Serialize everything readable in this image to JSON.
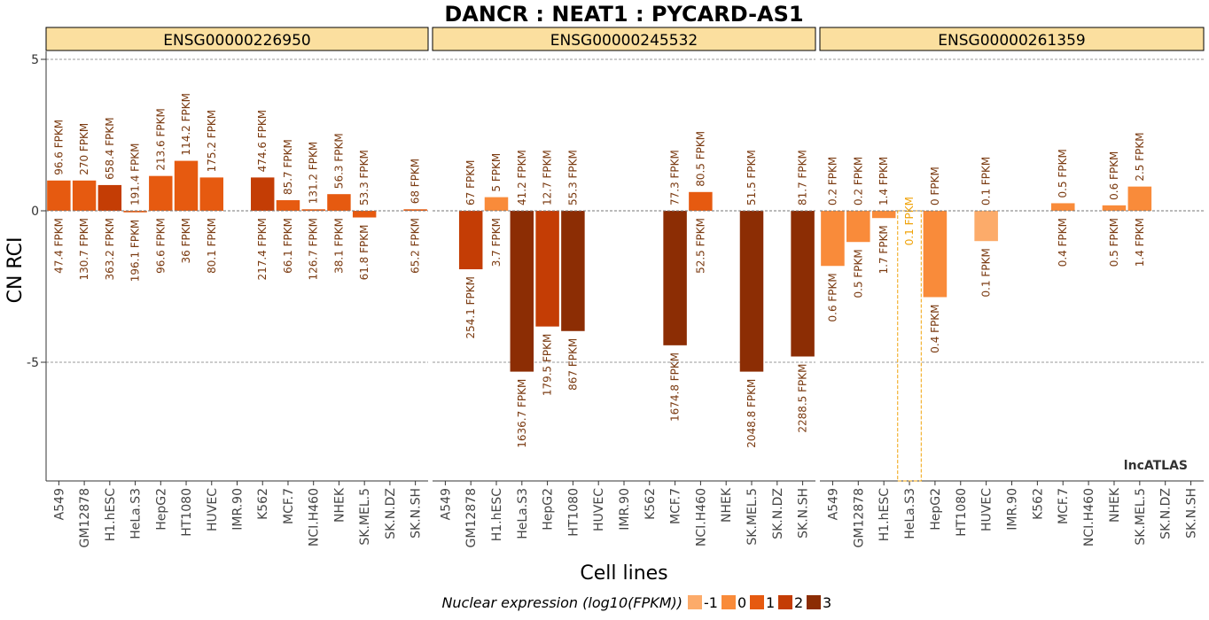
{
  "chart_data": {
    "type": "bar",
    "title": "DANCR : NEAT1 : PYCARD-AS1",
    "xlabel": "Cell lines",
    "ylabel": "CN RCI",
    "ylim": [
      -9,
      5
    ],
    "yticks": [
      5,
      0,
      -5
    ],
    "grid": "horizontal dashed at y ticks",
    "watermark": "lncATLAS",
    "cell_lines": [
      "A549",
      "GM12878",
      "H1.hESC",
      "HeLa.S3",
      "HepG2",
      "HT1080",
      "HUVEC",
      "IMR.90",
      "K562",
      "MCF.7",
      "NCI.H460",
      "NHEK",
      "SK.MEL.5",
      "SK.N.DZ",
      "SK.N.SH"
    ],
    "legend": {
      "title": "Nuclear expression (log10(FPKM))",
      "placement": "bottom",
      "levels": [
        {
          "label": "-1",
          "color": "#fcab6a"
        },
        {
          "label": "0",
          "color": "#f98b3a"
        },
        {
          "label": "1",
          "color": "#e65a10"
        },
        {
          "label": "2",
          "color": "#c43d05"
        },
        {
          "label": "3",
          "color": "#8c2d04"
        }
      ]
    },
    "panels": [
      {
        "gene_id": "ENSG00000226950",
        "bars": [
          {
            "cell": "A549",
            "rci": 1.0,
            "cyto": "96.6 FPKM",
            "nuc": "47.4 FPKM",
            "level": 2
          },
          {
            "cell": "GM12878",
            "rci": 1.0,
            "cyto": "270 FPKM",
            "nuc": "130.7 FPKM",
            "level": 2
          },
          {
            "cell": "H1.hESC",
            "rci": 0.85,
            "cyto": "658.4 FPKM",
            "nuc": "363.2 FPKM",
            "level": 3
          },
          {
            "cell": "HeLa.S3",
            "rci": -0.05,
            "cyto": "191.4 FPKM",
            "nuc": "196.1 FPKM",
            "level": 2
          },
          {
            "cell": "HepG2",
            "rci": 1.15,
            "cyto": "213.6 FPKM",
            "nuc": "96.6 FPKM",
            "level": 2
          },
          {
            "cell": "HT1080",
            "rci": 1.65,
            "cyto": "114.2 FPKM",
            "nuc": "36 FPKM",
            "level": 2
          },
          {
            "cell": "HUVEC",
            "rci": 1.1,
            "cyto": "175.2 FPKM",
            "nuc": "80.1 FPKM",
            "level": 2
          },
          {
            "cell": "IMR.90",
            "rci": null,
            "cyto": "",
            "nuc": "",
            "level": null
          },
          {
            "cell": "K562",
            "rci": 1.1,
            "cyto": "474.6 FPKM",
            "nuc": "217.4 FPKM",
            "level": 3
          },
          {
            "cell": "MCF.7",
            "rci": 0.35,
            "cyto": "85.7 FPKM",
            "nuc": "66.1 FPKM",
            "level": 2
          },
          {
            "cell": "NCI.H460",
            "rci": 0.05,
            "cyto": "131.2 FPKM",
            "nuc": "126.7 FPKM",
            "level": 2
          },
          {
            "cell": "NHEK",
            "rci": 0.55,
            "cyto": "56.3 FPKM",
            "nuc": "38.1 FPKM",
            "level": 2
          },
          {
            "cell": "SK.MEL.5",
            "rci": -0.22,
            "cyto": "53.3 FPKM",
            "nuc": "61.8 FPKM",
            "level": 2
          },
          {
            "cell": "SK.N.DZ",
            "rci": null,
            "cyto": "",
            "nuc": "",
            "level": null
          },
          {
            "cell": "SK.N.SH",
            "rci": 0.05,
            "cyto": "68 FPKM",
            "nuc": "65.2 FPKM",
            "level": 2
          }
        ]
      },
      {
        "gene_id": "ENSG00000245532",
        "bars": [
          {
            "cell": "A549",
            "rci": null,
            "cyto": "",
            "nuc": "",
            "level": null
          },
          {
            "cell": "GM12878",
            "rci": -1.93,
            "cyto": "67 FPKM",
            "nuc": "254.1 FPKM",
            "level": 3
          },
          {
            "cell": "H1.hESC",
            "rci": 0.45,
            "cyto": "5 FPKM",
            "nuc": "3.7 FPKM",
            "level": 1
          },
          {
            "cell": "HeLa.S3",
            "rci": -5.31,
            "cyto": "41.2 FPKM",
            "nuc": "1636.7 FPKM",
            "level": 4
          },
          {
            "cell": "HepG2",
            "rci": -3.82,
            "cyto": "12.7 FPKM",
            "nuc": "179.5 FPKM",
            "level": 3
          },
          {
            "cell": "HT1080",
            "rci": -3.97,
            "cyto": "55.3 FPKM",
            "nuc": "867 FPKM",
            "level": 4
          },
          {
            "cell": "HUVEC",
            "rci": null,
            "cyto": "",
            "nuc": "",
            "level": null
          },
          {
            "cell": "IMR.90",
            "rci": null,
            "cyto": "",
            "nuc": "",
            "level": null
          },
          {
            "cell": "K562",
            "rci": null,
            "cyto": "",
            "nuc": "",
            "level": null
          },
          {
            "cell": "MCF.7",
            "rci": -4.44,
            "cyto": "77.3 FPKM",
            "nuc": "1674.8 FPKM",
            "level": 4
          },
          {
            "cell": "NCI.H460",
            "rci": 0.62,
            "cyto": "80.5 FPKM",
            "nuc": "52.5 FPKM",
            "level": 2
          },
          {
            "cell": "NHEK",
            "rci": null,
            "cyto": "",
            "nuc": "",
            "level": null
          },
          {
            "cell": "SK.MEL.5",
            "rci": -5.31,
            "cyto": "51.5 FPKM",
            "nuc": "2048.8 FPKM",
            "level": 4
          },
          {
            "cell": "SK.N.DZ",
            "rci": null,
            "cyto": "",
            "nuc": "",
            "level": null
          },
          {
            "cell": "SK.N.SH",
            "rci": -4.81,
            "cyto": "81.7 FPKM",
            "nuc": "2288.5 FPKM",
            "level": 4
          }
        ]
      },
      {
        "gene_id": "ENSG00000261359",
        "bars": [
          {
            "cell": "A549",
            "rci": -1.82,
            "cyto": "0.2 FPKM",
            "nuc": "0.6 FPKM",
            "level": 1
          },
          {
            "cell": "GM12878",
            "rci": -1.03,
            "cyto": "0.2 FPKM",
            "nuc": "0.5 FPKM",
            "level": 1
          },
          {
            "cell": "H1.hESC",
            "rci": -0.24,
            "cyto": "1.4 FPKM",
            "nuc": "1.7 FPKM",
            "level": 1
          },
          {
            "cell": "HeLa.S3",
            "rci": -9.0,
            "cyto": "",
            "nuc": "0.1 FPKM",
            "level": 0,
            "outline": true
          },
          {
            "cell": "HepG2",
            "rci": -2.85,
            "cyto": "0 FPKM",
            "nuc": "0.4 FPKM",
            "level": 1
          },
          {
            "cell": "HT1080",
            "rci": null,
            "cyto": "",
            "nuc": "",
            "level": null
          },
          {
            "cell": "HUVEC",
            "rci": -1.0,
            "cyto": "0.1 FPKM",
            "nuc": "0.1 FPKM",
            "level": 0
          },
          {
            "cell": "IMR.90",
            "rci": null,
            "cyto": "",
            "nuc": "",
            "level": null
          },
          {
            "cell": "K562",
            "rci": null,
            "cyto": "",
            "nuc": "",
            "level": null
          },
          {
            "cell": "MCF.7",
            "rci": 0.25,
            "cyto": "0.5 FPKM",
            "nuc": "0.4 FPKM",
            "level": 1
          },
          {
            "cell": "NCI.H460",
            "rci": null,
            "cyto": "",
            "nuc": "",
            "level": null
          },
          {
            "cell": "NHEK",
            "rci": 0.18,
            "cyto": "0.6 FPKM",
            "nuc": "0.5 FPKM",
            "level": 1
          },
          {
            "cell": "SK.MEL.5",
            "rci": 0.8,
            "cyto": "2.5 FPKM",
            "nuc": "1.4 FPKM",
            "level": 1
          },
          {
            "cell": "SK.N.DZ",
            "rci": null,
            "cyto": "",
            "nuc": "",
            "level": null
          },
          {
            "cell": "SK.N.SH",
            "rci": null,
            "cyto": "",
            "nuc": "",
            "level": null
          }
        ]
      }
    ]
  }
}
